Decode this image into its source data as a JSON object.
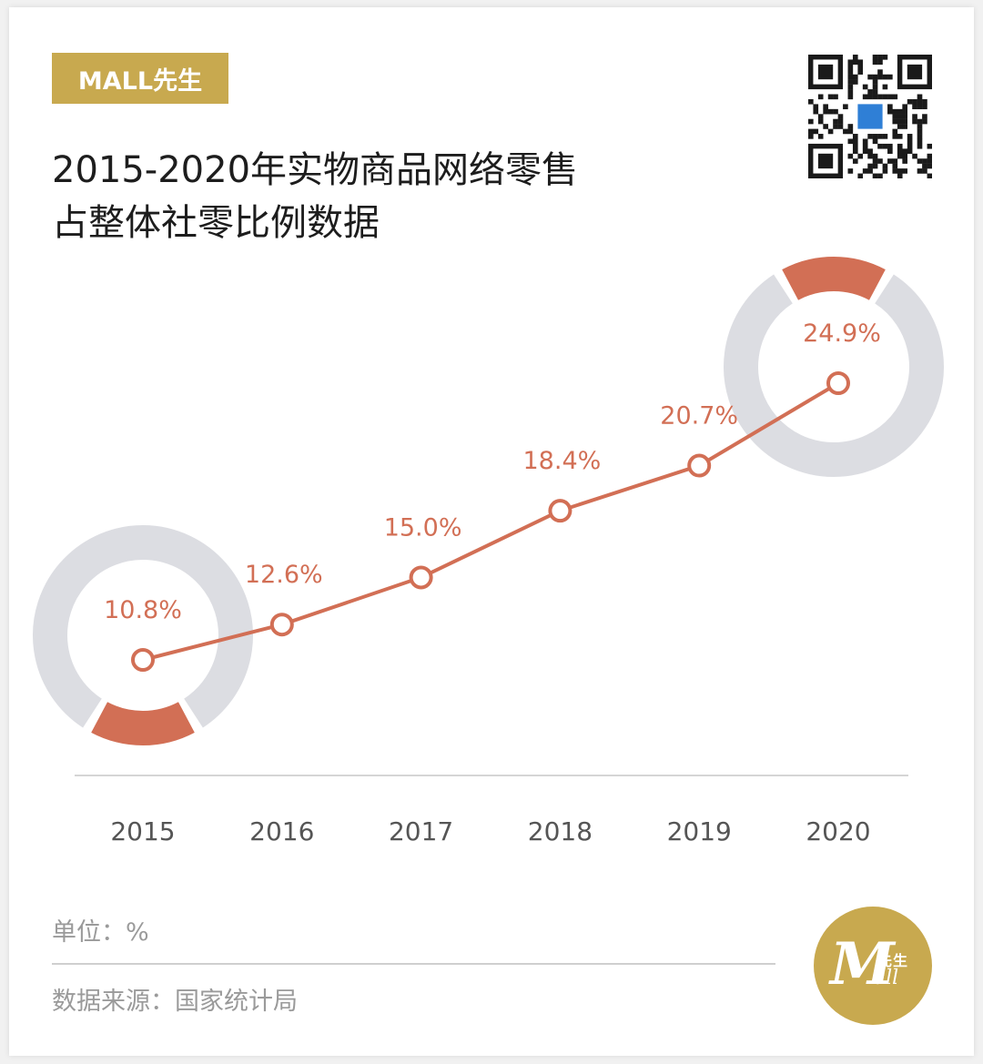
{
  "badge": "MALL先生",
  "title_lines": [
    "2015-2020年实物商品网络零售",
    "占整体社零比例数据"
  ],
  "unit": "单位：%",
  "source": "数据来源：国家统计局",
  "logo": {
    "m": "M",
    "cn": "先生",
    "all": "all"
  },
  "colors": {
    "accent": "#d26f55",
    "ring": "#dcdde2",
    "gold": "#c8a94f",
    "axis": "#d5d5d5",
    "text": "#1d1d1d"
  },
  "chart_data": {
    "type": "line",
    "categories": [
      "2015",
      "2016",
      "2017",
      "2018",
      "2019",
      "2020"
    ],
    "series": [
      {
        "values": [
          10.8,
          12.6,
          15.0,
          18.4,
          20.7,
          24.9
        ]
      }
    ],
    "value_labels": [
      "10.8%",
      "12.6%",
      "15.0%",
      "18.4%",
      "20.7%",
      "24.9%"
    ],
    "xlabel": "",
    "ylabel": "",
    "grid": false,
    "highlight_rings": [
      {
        "category": "2015",
        "accent_arc": "bottom"
      },
      {
        "category": "2020",
        "accent_arc": "top"
      }
    ]
  }
}
